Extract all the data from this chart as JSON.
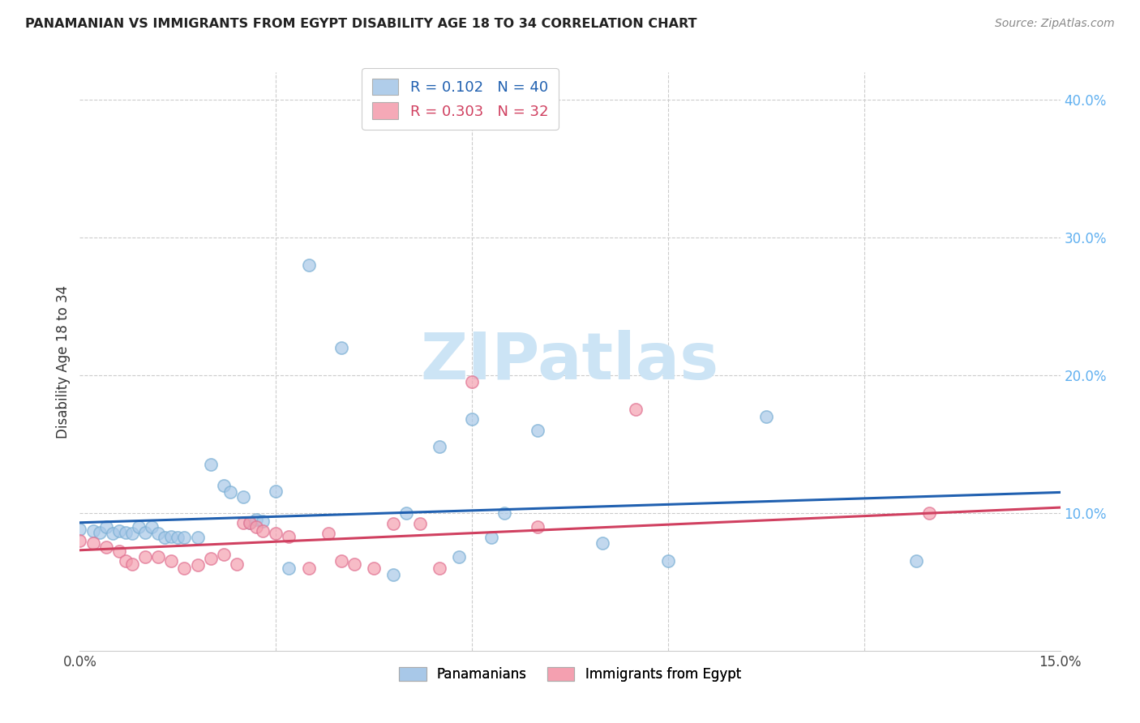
{
  "title": "PANAMANIAN VS IMMIGRANTS FROM EGYPT DISABILITY AGE 18 TO 34 CORRELATION CHART",
  "source": "Source: ZipAtlas.com",
  "ylabel": "Disability Age 18 to 34",
  "xlim": [
    0.0,
    0.15
  ],
  "ylim": [
    0.0,
    0.42
  ],
  "legend_blue_r_val": "0.102",
  "legend_blue_n_val": "40",
  "legend_pink_r_val": "0.303",
  "legend_pink_n_val": "32",
  "blue_color": "#a8c8e8",
  "blue_edge_color": "#7aafd4",
  "pink_color": "#f4a0b0",
  "pink_edge_color": "#e07090",
  "blue_line_color": "#2060b0",
  "pink_line_color": "#d04060",
  "ytick_color": "#60b0f0",
  "watermark_color": "#cce4f5",
  "watermark": "ZIPatlas",
  "blue_series_x": [
    0.0,
    0.002,
    0.003,
    0.004,
    0.005,
    0.006,
    0.007,
    0.008,
    0.009,
    0.01,
    0.011,
    0.012,
    0.013,
    0.014,
    0.015,
    0.016,
    0.018,
    0.02,
    0.022,
    0.023,
    0.025,
    0.026,
    0.027,
    0.028,
    0.03,
    0.032,
    0.035,
    0.04,
    0.048,
    0.05,
    0.055,
    0.058,
    0.06,
    0.063,
    0.065,
    0.07,
    0.08,
    0.09,
    0.105,
    0.128
  ],
  "blue_series_y": [
    0.088,
    0.087,
    0.086,
    0.09,
    0.085,
    0.087,
    0.086,
    0.085,
    0.09,
    0.086,
    0.09,
    0.085,
    0.082,
    0.083,
    0.082,
    0.082,
    0.082,
    0.135,
    0.12,
    0.115,
    0.112,
    0.093,
    0.095,
    0.094,
    0.116,
    0.06,
    0.28,
    0.22,
    0.055,
    0.1,
    0.148,
    0.068,
    0.168,
    0.082,
    0.1,
    0.16,
    0.078,
    0.065,
    0.17,
    0.065
  ],
  "pink_series_x": [
    0.0,
    0.002,
    0.004,
    0.006,
    0.007,
    0.008,
    0.01,
    0.012,
    0.014,
    0.016,
    0.018,
    0.02,
    0.022,
    0.024,
    0.025,
    0.026,
    0.027,
    0.028,
    0.03,
    0.032,
    0.035,
    0.038,
    0.04,
    0.042,
    0.045,
    0.048,
    0.052,
    0.055,
    0.06,
    0.07,
    0.085,
    0.13
  ],
  "pink_series_y": [
    0.08,
    0.078,
    0.075,
    0.072,
    0.065,
    0.063,
    0.068,
    0.068,
    0.065,
    0.06,
    0.062,
    0.067,
    0.07,
    0.063,
    0.093,
    0.093,
    0.09,
    0.087,
    0.085,
    0.083,
    0.06,
    0.085,
    0.065,
    0.063,
    0.06,
    0.092,
    0.092,
    0.06,
    0.195,
    0.09,
    0.175,
    0.1
  ],
  "blue_trend_y0": 0.093,
  "blue_trend_y1": 0.115,
  "pink_trend_y0": 0.073,
  "pink_trend_y1": 0.104
}
